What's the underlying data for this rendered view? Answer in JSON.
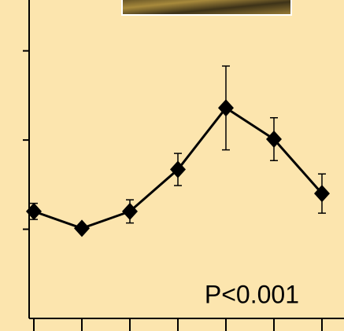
{
  "chart_data": {
    "type": "line",
    "annotation": "P<0.001",
    "categories": [
      null,
      null,
      null,
      null,
      null,
      null,
      null
    ],
    "series": [
      {
        "color": "#000000",
        "values": [
          1.2,
          1.01,
          1.2,
          1.67,
          2.36,
          2.01,
          1.4
        ],
        "errors": [
          0.09,
          0.02,
          0.13,
          0.18,
          0.47,
          0.24,
          0.22
        ]
      }
    ],
    "ylim": [
      0,
      3.57
    ],
    "yticks": [
      1,
      2,
      3
    ]
  }
}
